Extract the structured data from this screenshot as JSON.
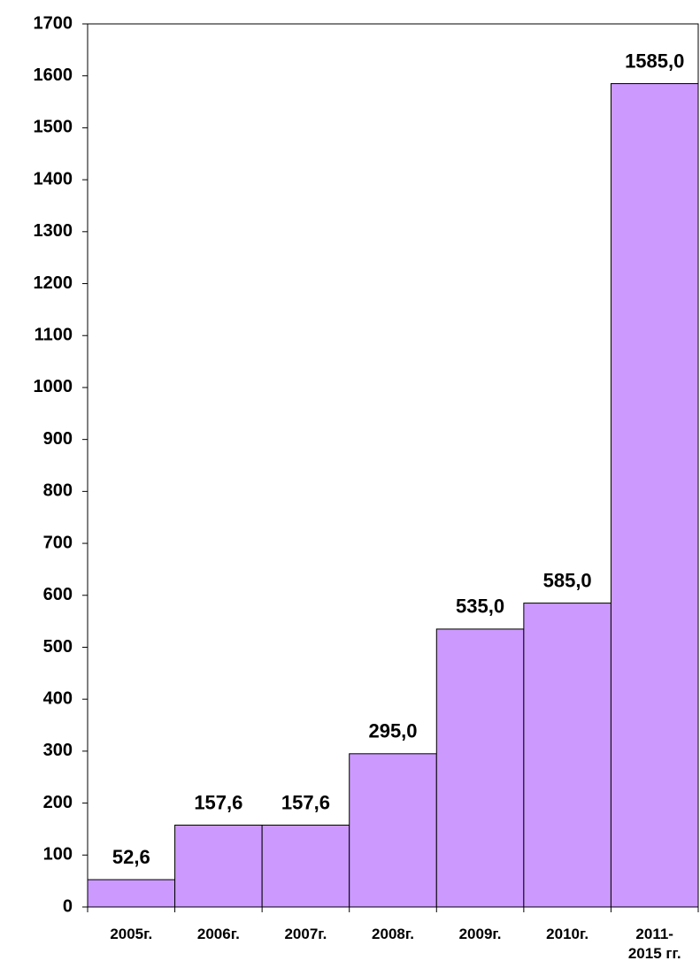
{
  "chart_data": {
    "type": "bar",
    "categories": [
      "2005г.",
      "2006г.",
      "2007г.",
      "2008г.",
      "2009г.",
      "2010г.",
      "2011-\n2015 гг."
    ],
    "values": [
      52.6,
      157.6,
      157.6,
      295.0,
      535.0,
      585.0,
      1585.0
    ],
    "value_labels": [
      "52,6",
      "157,6",
      "157,6",
      "295,0",
      "535,0",
      "585,0",
      "1585,0"
    ],
    "color": "#cc99ff",
    "ylim": [
      0,
      1700
    ],
    "yticks": [
      0,
      100,
      200,
      300,
      400,
      500,
      600,
      700,
      800,
      900,
      1000,
      1100,
      1200,
      1300,
      1400,
      1500,
      1600,
      1700
    ],
    "grid": false
  }
}
